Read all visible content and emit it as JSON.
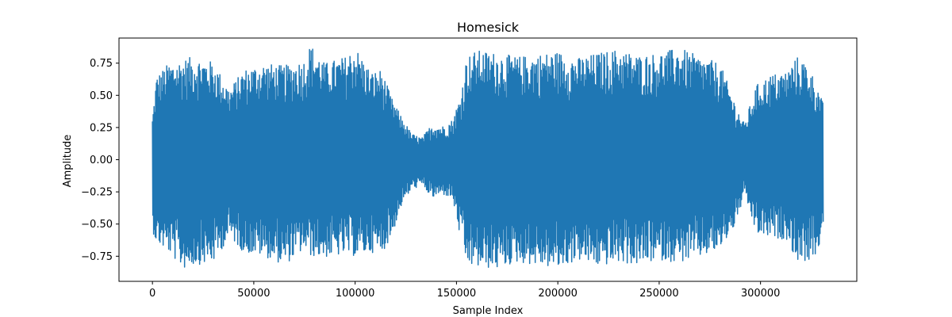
{
  "chart_data": {
    "type": "line",
    "title": "Homesick",
    "xlabel": "Sample Index",
    "ylabel": "Amplitude",
    "xlim": [
      -16500,
      347500
    ],
    "ylim": [
      -0.945,
      0.945
    ],
    "xticks": [
      0,
      50000,
      100000,
      150000,
      200000,
      250000,
      300000
    ],
    "xtick_labels": [
      "0",
      "50000",
      "100000",
      "150000",
      "200000",
      "250000",
      "300000"
    ],
    "yticks": [
      -0.75,
      -0.5,
      -0.25,
      0.0,
      0.25,
      0.5,
      0.75
    ],
    "ytick_labels": [
      "−0.75",
      "−0.50",
      "−0.25",
      "0.00",
      "0.25",
      "0.50",
      "0.75"
    ],
    "grid": false,
    "series": [
      {
        "color": "#1f77b4",
        "n_samples": 331000,
        "envelope": {
          "x": [
            0,
            2000,
            8000,
            15000,
            20000,
            30000,
            38000,
            45000,
            55000,
            65000,
            75000,
            78000,
            85000,
            95000,
            100000,
            108000,
            113000,
            118000,
            123000,
            128000,
            133000,
            138000,
            143000,
            148000,
            152000,
            155000,
            160000,
            170000,
            180000,
            190000,
            200000,
            210000,
            220000,
            230000,
            240000,
            250000,
            260000,
            270000,
            280000,
            288000,
            292000,
            298000,
            305000,
            313000,
            318000,
            323000,
            328000,
            331000
          ],
          "upper": [
            0.33,
            0.65,
            0.75,
            0.78,
            0.8,
            0.76,
            0.55,
            0.7,
            0.75,
            0.73,
            0.78,
            0.9,
            0.75,
            0.8,
            0.88,
            0.68,
            0.7,
            0.48,
            0.33,
            0.2,
            0.17,
            0.28,
            0.26,
            0.31,
            0.5,
            0.8,
            0.85,
            0.83,
            0.8,
            0.82,
            0.84,
            0.79,
            0.83,
            0.86,
            0.81,
            0.83,
            0.87,
            0.8,
            0.75,
            0.42,
            0.28,
            0.58,
            0.66,
            0.69,
            0.8,
            0.75,
            0.58,
            0.43
          ],
          "lower": [
            -0.55,
            -0.65,
            -0.72,
            -0.85,
            -0.82,
            -0.8,
            -0.6,
            -0.72,
            -0.75,
            -0.82,
            -0.7,
            -0.75,
            -0.76,
            -0.74,
            -0.75,
            -0.72,
            -0.73,
            -0.6,
            -0.35,
            -0.23,
            -0.2,
            -0.3,
            -0.27,
            -0.3,
            -0.62,
            -0.82,
            -0.84,
            -0.85,
            -0.8,
            -0.82,
            -0.85,
            -0.78,
            -0.83,
            -0.8,
            -0.82,
            -0.78,
            -0.8,
            -0.76,
            -0.7,
            -0.5,
            -0.27,
            -0.58,
            -0.61,
            -0.62,
            -0.79,
            -0.79,
            -0.75,
            -0.5
          ]
        }
      }
    ]
  }
}
